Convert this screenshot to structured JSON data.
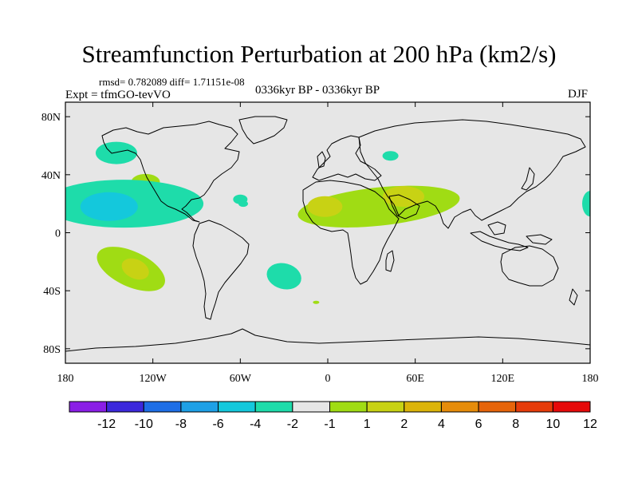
{
  "title": "Streamfunction Perturbation at 200 hPa (km2/s)",
  "stats_line": "rmsd= 0.782089 diff= 1.71151e-08",
  "experiment": "Expt = tfmGO-tevVO",
  "period": "0336kyr BP - 0336kyr BP",
  "season": "DJF",
  "colors": {
    "map_background": "#e6e6e6",
    "coastline": "#000000",
    "contour_bins": [
      "#8a1ee6",
      "#3c28dc",
      "#1e6ee6",
      "#1ea0e6",
      "#14c8dc",
      "#1edcaa",
      "#e6e6e6",
      "#a0dc14",
      "#c8d214",
      "#dcb40a",
      "#e68c0a",
      "#e6640a",
      "#e63c0a",
      "#e60a0a"
    ]
  },
  "y_axis": {
    "ticks": [
      "80N",
      "40N",
      "0",
      "40S",
      "80S"
    ]
  },
  "x_axis": {
    "ticks": [
      "180",
      "120W",
      "60W",
      "0",
      "60E",
      "120E",
      "180"
    ]
  },
  "colorbar": {
    "labels": [
      "-12",
      "-10",
      "-8",
      "-6",
      "-4",
      "-2",
      "-1",
      "1",
      "2",
      "4",
      "6",
      "8",
      "10",
      "12"
    ]
  },
  "anomalies": [
    {
      "name": "north-pacific-negative",
      "fill": "#1edcaa",
      "lon": -145,
      "lat": 55
    },
    {
      "name": "subtropical-north-pacific-positive",
      "fill": "#a0dc14",
      "lon": -125,
      "lat": 35
    },
    {
      "name": "east-pacific-negative-outer",
      "fill": "#1edcaa",
      "lon": -140,
      "lat": 20
    },
    {
      "name": "east-pacific-negative-core",
      "fill": "#14c8dc",
      "lon": -150,
      "lat": 18
    },
    {
      "name": "south-pacific-positive-outer",
      "fill": "#a0dc14",
      "lon": -135,
      "lat": -25
    },
    {
      "name": "south-pacific-positive-core",
      "fill": "#c8d214",
      "lon": -132,
      "lat": -25
    },
    {
      "name": "north-africa-arabia-positive",
      "fill": "#a0dc14",
      "lon": 35,
      "lat": 18
    },
    {
      "name": "sahara-positive-core",
      "fill": "#c8d214",
      "lon": -2,
      "lat": 18
    },
    {
      "name": "arabia-positive-core",
      "fill": "#c8d214",
      "lon": 52,
      "lat": 25
    },
    {
      "name": "south-atlantic-negative",
      "fill": "#1edcaa",
      "lon": -30,
      "lat": -30
    },
    {
      "name": "central-asia-negative",
      "fill": "#1edcaa",
      "lon": 43,
      "lat": 53
    },
    {
      "name": "atlantic-small-negative",
      "fill": "#1edcaa",
      "lon": -60,
      "lat": 23
    },
    {
      "name": "caribbean-small-negative",
      "fill": "#1edcaa",
      "lon": -58,
      "lat": 20
    },
    {
      "name": "pacific-east-edge-negative",
      "fill": "#1edcaa",
      "lon": 180,
      "lat": 20
    },
    {
      "name": "south-atlantic-small-positive",
      "fill": "#a0dc14",
      "lon": -8,
      "lat": -48
    }
  ]
}
